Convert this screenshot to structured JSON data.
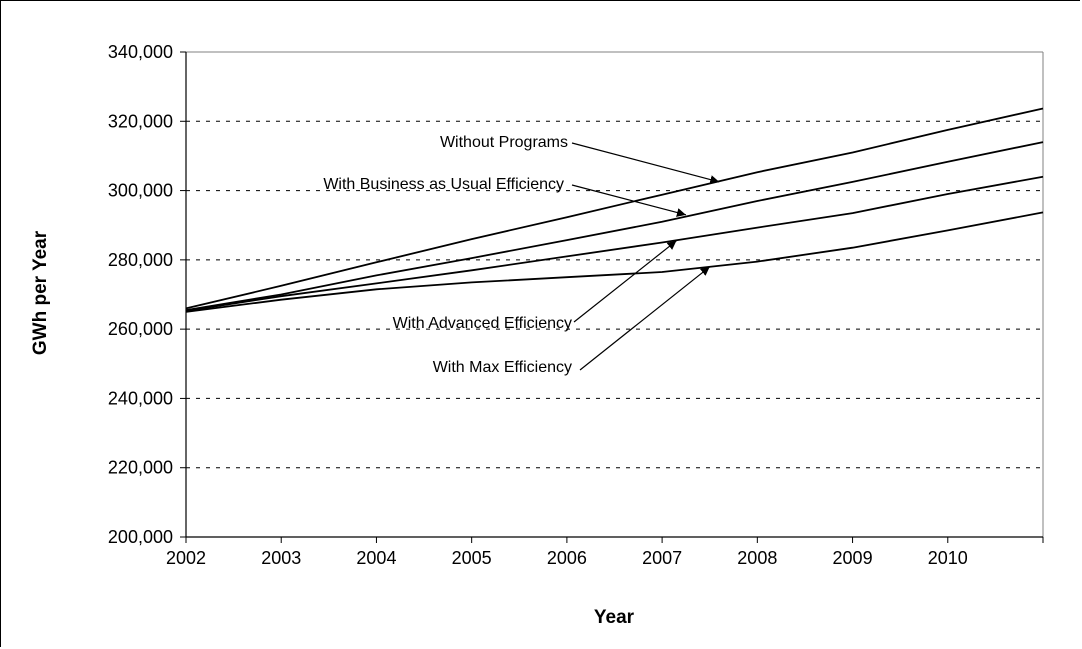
{
  "chart_data": {
    "type": "line",
    "title": "",
    "xlabel": "Year",
    "ylabel": "GWh per Year",
    "x": [
      2002,
      2003,
      2004,
      2005,
      2006,
      2007,
      2008,
      2009,
      2010,
      2011
    ],
    "x_tick_labels": [
      "2002",
      "2003",
      "2004",
      "2005",
      "2006",
      "2007",
      "2008",
      "2009",
      "2010"
    ],
    "y_ticks": [
      200000,
      220000,
      240000,
      260000,
      280000,
      300000,
      320000,
      340000
    ],
    "y_tick_labels": [
      "200,000",
      "220,000",
      "240,000",
      "260,000",
      "280,000",
      "300,000",
      "320,000",
      "340,000"
    ],
    "ylim": [
      200000,
      340000
    ],
    "xlim": [
      2002,
      2011
    ],
    "grid": "horizontal dashed",
    "legend": "none",
    "series": [
      {
        "label_ref": 0,
        "values": [
          266000,
          272500,
          279300,
          286000,
          292300,
          298800,
          305300,
          311000,
          317500,
          323700
        ]
      },
      {
        "label_ref": 1,
        "values": [
          265500,
          270000,
          275500,
          280500,
          285700,
          291000,
          297000,
          302500,
          308300,
          314000
        ]
      },
      {
        "label_ref": 2,
        "values": [
          265300,
          269500,
          273200,
          277000,
          281000,
          285000,
          289300,
          293500,
          299000,
          304000
        ]
      },
      {
        "label_ref": 3,
        "values": [
          265000,
          268500,
          271500,
          273500,
          275000,
          276500,
          279500,
          283500,
          288500,
          293700
        ]
      }
    ],
    "annotations": [
      {
        "text": "Without Programs",
        "arrow_to": {
          "x": 2007.6,
          "y": 302500
        }
      },
      {
        "text": "With Business as Usual  Efficiency",
        "arrow_to": {
          "x": 2007.25,
          "y": 293000
        }
      },
      {
        "text": "With Advanced Efficiency",
        "arrow_to": {
          "x": 2007.15,
          "y": 285500
        }
      },
      {
        "text": "With Max Efficiency",
        "arrow_to": {
          "x": 2007.5,
          "y": 278000
        }
      }
    ],
    "colors": {
      "lines": "#000000",
      "grid": "#000000",
      "background": "#ffffff"
    }
  }
}
